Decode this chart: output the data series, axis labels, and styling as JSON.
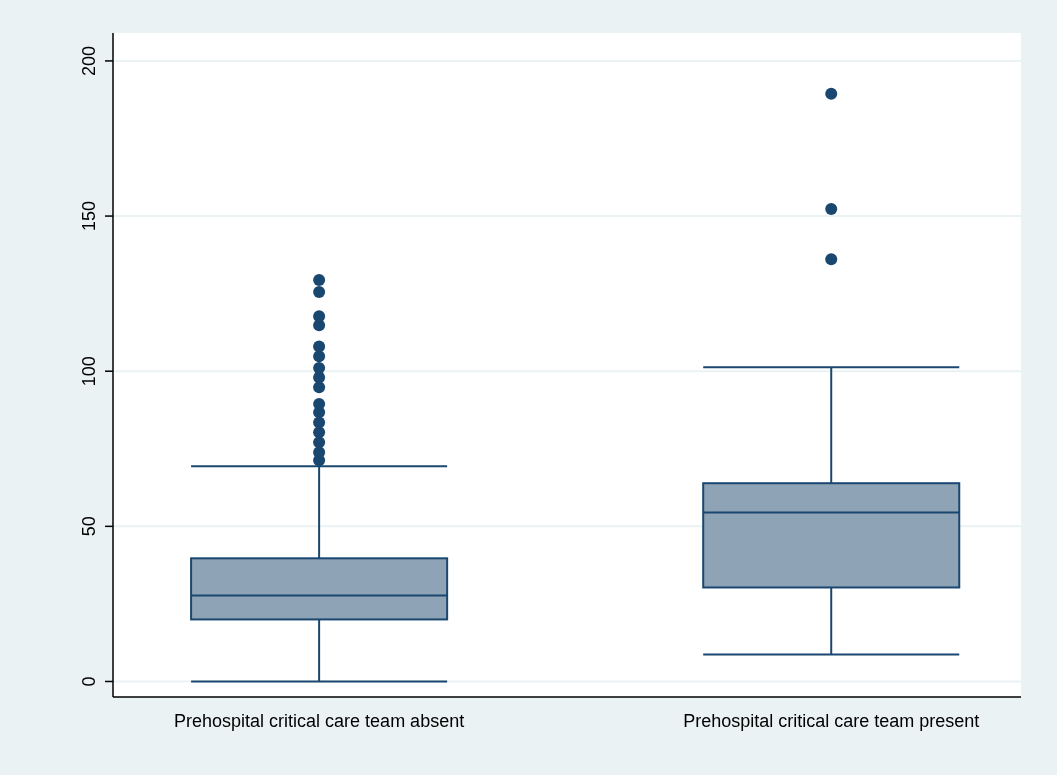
{
  "chart_data": {
    "type": "box",
    "categories": [
      "Prehospital critical care team absent",
      "Prehospital critical care team present"
    ],
    "color": "#8ea3b6",
    "ylim": [
      -5,
      209
    ],
    "yticks": [
      0,
      50,
      100,
      150,
      200
    ],
    "grid": "y",
    "marker": "circle",
    "boxes": [
      {
        "low": 0,
        "q1": 20,
        "median": 27.7,
        "q3": 39.7,
        "high": 69.4,
        "outliers": [
          71.3,
          73.9,
          77.1,
          80.3,
          83.5,
          86.8,
          89.4,
          94.8,
          98,
          101,
          104.8,
          108,
          114.8,
          117.7,
          125.5,
          129.4
        ]
      },
      {
        "low": 8.7,
        "q1": 30.3,
        "median": 54.5,
        "q3": 63.9,
        "high": 101.3,
        "outliers": [
          136.1,
          152.3,
          189.4
        ]
      }
    ]
  }
}
